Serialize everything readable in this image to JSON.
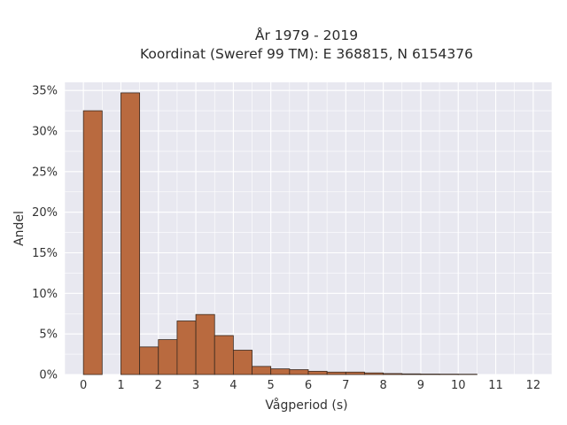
{
  "chart_data": {
    "type": "bar",
    "title_line1": "År 1979 - 2019",
    "title_line2": "Koordinat (Sweref 99 TM): E 368815, N 6154376",
    "xlabel": "Vågperiod (s)",
    "ylabel": "Andel",
    "xlim": [
      -0.5,
      12.5
    ],
    "ylim": [
      0,
      0.36
    ],
    "xticks": [
      0,
      1,
      2,
      3,
      4,
      5,
      6,
      7,
      8,
      9,
      10,
      11,
      12
    ],
    "xtick_labels": [
      "0",
      "1",
      "2",
      "3",
      "4",
      "5",
      "6",
      "7",
      "8",
      "9",
      "10",
      "11",
      "12"
    ],
    "yticks": [
      0,
      0.05,
      0.1,
      0.15,
      0.2,
      0.25,
      0.3,
      0.35
    ],
    "ytick_labels": [
      "0%",
      "5%",
      "10%",
      "15%",
      "20%",
      "25%",
      "30%",
      "35%"
    ],
    "bin_width": 0.5,
    "bins": [
      {
        "start": 0.0,
        "end": 0.5,
        "value": 0.325
      },
      {
        "start": 1.0,
        "end": 1.5,
        "value": 0.347
      },
      {
        "start": 1.5,
        "end": 2.0,
        "value": 0.034
      },
      {
        "start": 2.0,
        "end": 2.5,
        "value": 0.043
      },
      {
        "start": 2.5,
        "end": 3.0,
        "value": 0.066
      },
      {
        "start": 3.0,
        "end": 3.5,
        "value": 0.074
      },
      {
        "start": 3.5,
        "end": 4.0,
        "value": 0.048
      },
      {
        "start": 4.0,
        "end": 4.5,
        "value": 0.03
      },
      {
        "start": 4.5,
        "end": 5.0,
        "value": 0.01
      },
      {
        "start": 5.0,
        "end": 5.5,
        "value": 0.007
      },
      {
        "start": 5.5,
        "end": 6.0,
        "value": 0.006
      },
      {
        "start": 6.0,
        "end": 6.5,
        "value": 0.004
      },
      {
        "start": 6.5,
        "end": 7.0,
        "value": 0.003
      },
      {
        "start": 7.0,
        "end": 7.5,
        "value": 0.003
      },
      {
        "start": 7.5,
        "end": 8.0,
        "value": 0.002
      },
      {
        "start": 8.0,
        "end": 8.5,
        "value": 0.0012
      },
      {
        "start": 8.5,
        "end": 9.0,
        "value": 0.0008
      },
      {
        "start": 9.0,
        "end": 9.5,
        "value": 0.0006
      },
      {
        "start": 9.5,
        "end": 10.0,
        "value": 0.0005
      },
      {
        "start": 10.0,
        "end": 10.5,
        "value": 0.0004
      }
    ],
    "grid": true,
    "colors": {
      "bar_fill": "#b96a3f",
      "bar_stroke": "#3a2a20",
      "plot_bg": "#e8e8f0",
      "grid": "#ffffff"
    }
  }
}
